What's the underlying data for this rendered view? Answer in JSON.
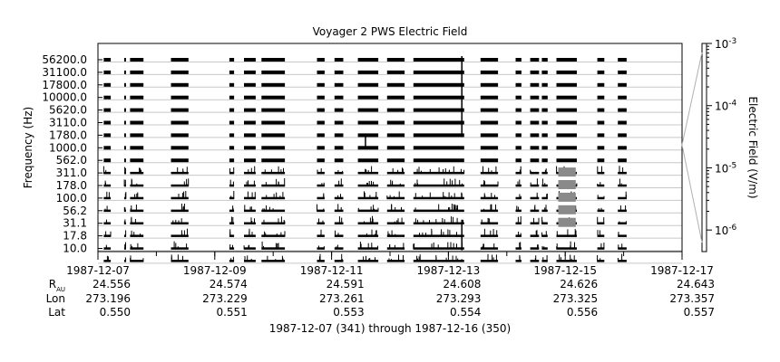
{
  "chart_data": {
    "type": "heatmap",
    "title": "Voyager 2 PWS Electric Field",
    "ylabel": "Frequency (Hz)",
    "colorbar_label": "Electric Field (V/m)",
    "colorbar_scale": "log",
    "colorbar_range": [
      4.5e-07,
      0.001
    ],
    "colorbar_ticks": [
      {
        "base": "10",
        "exp": "-3",
        "value": 0.001
      },
      {
        "base": "10",
        "exp": "-4",
        "value": 0.0001
      },
      {
        "base": "10",
        "exp": "-5",
        "value": 1e-05
      },
      {
        "base": "10",
        "exp": "-6",
        "value": 1e-06
      }
    ],
    "x_range_days": [
      0,
      10
    ],
    "x_ticks": [
      {
        "label": "1987-12-07",
        "day": 0
      },
      {
        "label": "1987-12-09",
        "day": 2
      },
      {
        "label": "1987-12-11",
        "day": 4
      },
      {
        "label": "1987-12-13",
        "day": 6
      },
      {
        "label": "1987-12-15",
        "day": 8
      },
      {
        "label": "1987-12-17",
        "day": 10
      }
    ],
    "channels": [
      "56200.0",
      "31100.0",
      "17800.0",
      "10000.0",
      "5620.0",
      "3110.0",
      "1780.0",
      "1000.0",
      "562.0",
      "311.0",
      "178.0",
      "100.0",
      "56.2",
      "31.1",
      "17.8",
      "10.0"
    ],
    "data_intervals_days": [
      [
        0.1,
        0.22
      ],
      [
        0.45,
        0.48
      ],
      [
        0.55,
        0.78
      ],
      [
        1.25,
        1.55
      ],
      [
        2.25,
        2.33
      ],
      [
        2.5,
        2.7
      ],
      [
        2.8,
        3.2
      ],
      [
        3.75,
        3.88
      ],
      [
        4.05,
        4.2
      ],
      [
        4.45,
        4.8
      ],
      [
        4.95,
        5.25
      ],
      [
        5.4,
        6.27
      ],
      [
        6.55,
        6.85
      ],
      [
        7.15,
        7.25
      ],
      [
        7.4,
        7.55
      ],
      [
        7.6,
        7.7
      ],
      [
        7.85,
        8.2
      ],
      [
        8.55,
        8.67
      ],
      [
        8.9,
        9.05
      ]
    ],
    "footer": {
      "rows": [
        {
          "label_main": "R",
          "label_sub": "AU",
          "values": [
            "24.556",
            "24.574",
            "24.591",
            "24.608",
            "24.626",
            "24.643"
          ]
        },
        {
          "label_main": "Lon",
          "label_sub": "",
          "values": [
            "273.196",
            "273.229",
            "273.261",
            "273.293",
            "273.325",
            "273.357"
          ]
        },
        {
          "label_main": "Lat",
          "label_sub": "",
          "values": [
            "0.550",
            "0.551",
            "0.553",
            "0.554",
            "0.556",
            "0.557"
          ]
        }
      ],
      "date_range_caption": "1987-12-07 (341) through 1987-12-16 (350)"
    }
  }
}
